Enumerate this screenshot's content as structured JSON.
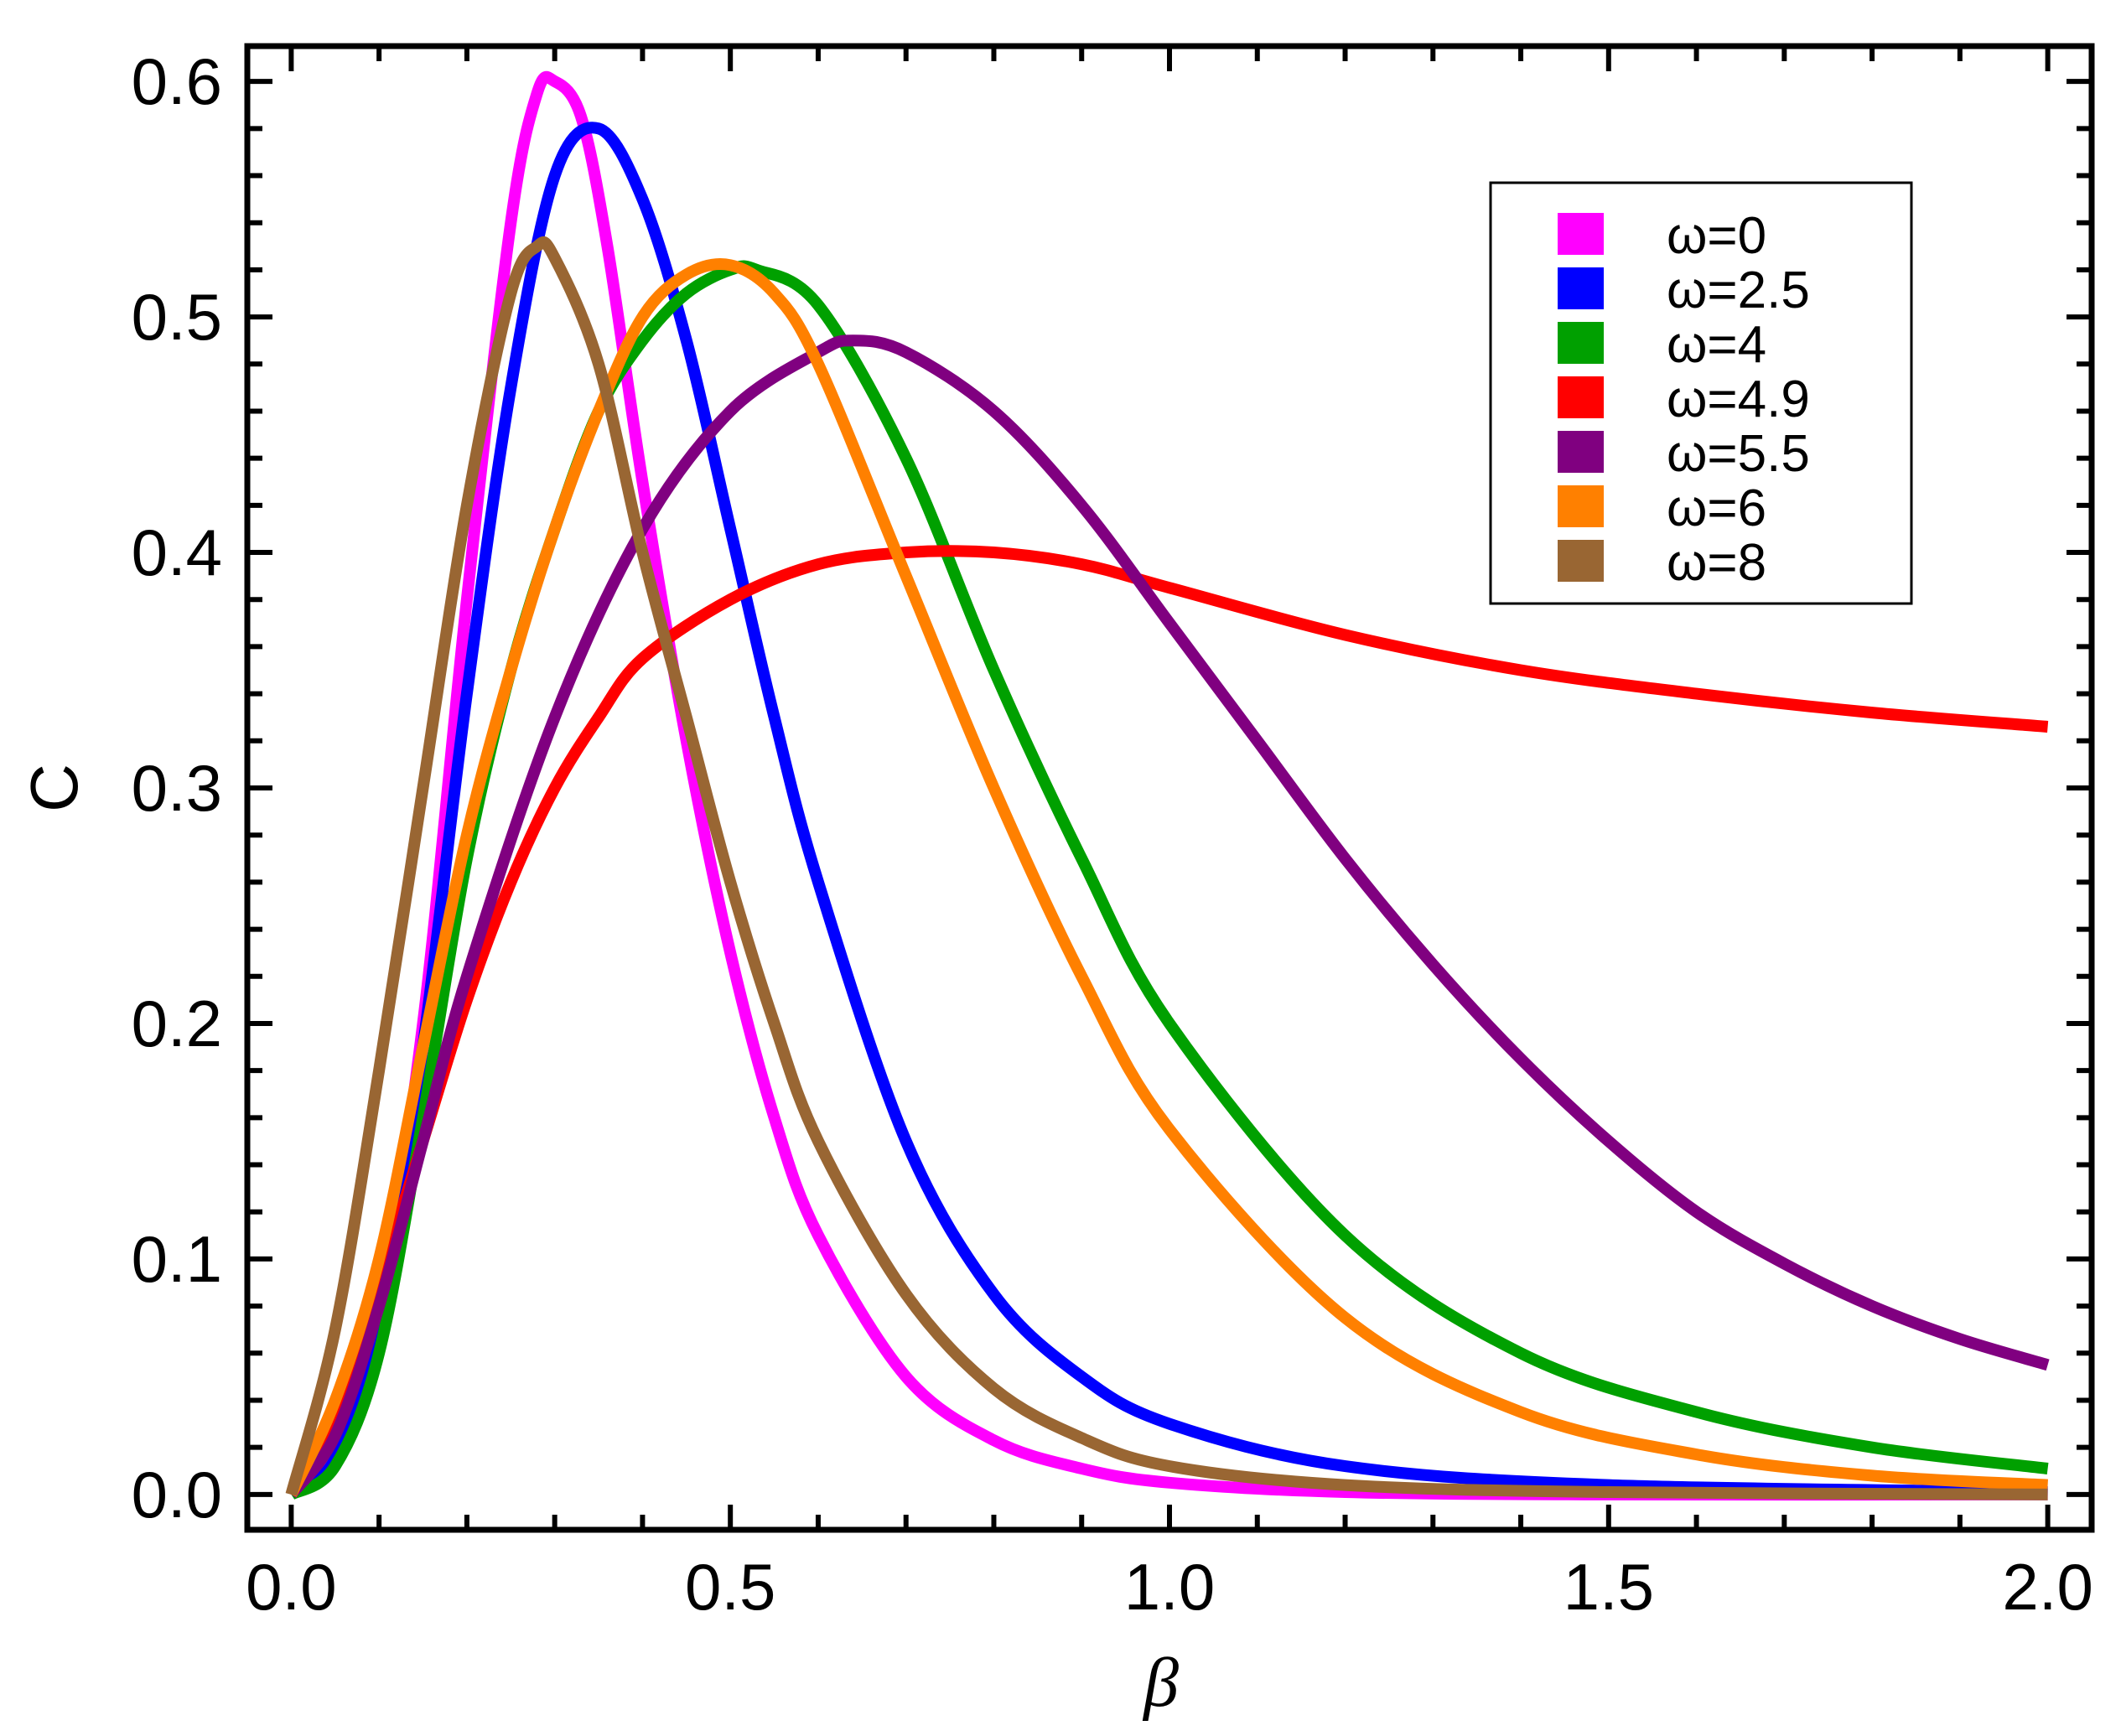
{
  "chart_data": {
    "type": "line",
    "title": "",
    "xlabel": "β",
    "ylabel": "C",
    "xlim": [
      -0.05,
      2.05
    ],
    "ylim": [
      -0.015,
      0.615
    ],
    "x_ticks": [
      "0.0",
      "0.5",
      "1.0",
      "1.5",
      "2.0"
    ],
    "y_ticks": [
      "0.0",
      "0.1",
      "0.2",
      "0.3",
      "0.4",
      "0.5",
      "0.6"
    ],
    "legend_position": "top-right",
    "series": [
      {
        "name": "ω=0",
        "color": "#ff00ff",
        "x": [
          0.0,
          0.05,
          0.1,
          0.15,
          0.2,
          0.25,
          0.28,
          0.3,
          0.33,
          0.36,
          0.4,
          0.45,
          0.5,
          0.55,
          0.6,
          0.7,
          0.8,
          0.9,
          1.0,
          1.2,
          1.5,
          2.0
        ],
        "y": [
          0.0,
          0.02,
          0.08,
          0.2,
          0.38,
          0.54,
          0.595,
          0.6,
          0.585,
          0.53,
          0.43,
          0.32,
          0.23,
          0.16,
          0.11,
          0.05,
          0.023,
          0.011,
          0.005,
          0.001,
          0.0,
          0.0
        ]
      },
      {
        "name": "ω=2.5",
        "color": "#0000ff",
        "x": [
          0.0,
          0.05,
          0.1,
          0.15,
          0.2,
          0.25,
          0.3,
          0.35,
          0.4,
          0.45,
          0.5,
          0.55,
          0.6,
          0.7,
          0.8,
          0.9,
          1.0,
          1.2,
          1.5,
          2.0
        ],
        "y": [
          0.0,
          0.015,
          0.07,
          0.19,
          0.34,
          0.47,
          0.56,
          0.58,
          0.55,
          0.49,
          0.41,
          0.33,
          0.26,
          0.15,
          0.085,
          0.05,
          0.03,
          0.012,
          0.004,
          0.001
        ]
      },
      {
        "name": "ω=4",
        "color": "#00a000",
        "x": [
          0.0,
          0.05,
          0.1,
          0.15,
          0.2,
          0.25,
          0.3,
          0.35,
          0.4,
          0.45,
          0.5,
          0.53,
          0.6,
          0.7,
          0.8,
          0.9,
          1.0,
          1.2,
          1.4,
          1.6,
          1.8,
          2.0
        ],
        "y": [
          0.0,
          0.012,
          0.06,
          0.16,
          0.27,
          0.35,
          0.41,
          0.46,
          0.49,
          0.51,
          0.52,
          0.52,
          0.505,
          0.44,
          0.35,
          0.27,
          0.2,
          0.11,
          0.06,
          0.035,
          0.02,
          0.011
        ]
      },
      {
        "name": "ω=4.9",
        "color": "#ff0000",
        "x": [
          0.0,
          0.05,
          0.1,
          0.15,
          0.2,
          0.25,
          0.3,
          0.35,
          0.4,
          0.5,
          0.6,
          0.7,
          0.8,
          0.9,
          1.0,
          1.2,
          1.4,
          1.6,
          1.8,
          2.0
        ],
        "y": [
          0.0,
          0.03,
          0.09,
          0.15,
          0.21,
          0.26,
          0.3,
          0.33,
          0.355,
          0.38,
          0.395,
          0.4,
          0.4,
          0.395,
          0.385,
          0.365,
          0.35,
          0.34,
          0.332,
          0.326
        ]
      },
      {
        "name": "ω=5.5",
        "color": "#800080",
        "x": [
          0.0,
          0.05,
          0.1,
          0.15,
          0.2,
          0.3,
          0.4,
          0.5,
          0.6,
          0.64,
          0.7,
          0.8,
          0.9,
          1.0,
          1.1,
          1.2,
          1.3,
          1.4,
          1.5,
          1.6,
          1.7,
          1.8,
          1.9,
          2.0
        ],
        "y": [
          0.0,
          0.025,
          0.08,
          0.15,
          0.22,
          0.33,
          0.41,
          0.46,
          0.485,
          0.49,
          0.485,
          0.46,
          0.42,
          0.37,
          0.32,
          0.27,
          0.225,
          0.185,
          0.15,
          0.12,
          0.098,
          0.08,
          0.066,
          0.055
        ]
      },
      {
        "name": "ω=6",
        "color": "#ff8000",
        "x": [
          0.0,
          0.05,
          0.1,
          0.15,
          0.2,
          0.25,
          0.3,
          0.35,
          0.4,
          0.45,
          0.5,
          0.55,
          0.6,
          0.7,
          0.8,
          0.9,
          1.0,
          1.2,
          1.4,
          1.6,
          1.8,
          2.0
        ],
        "y": [
          0.0,
          0.04,
          0.1,
          0.19,
          0.28,
          0.35,
          0.41,
          0.46,
          0.5,
          0.518,
          0.522,
          0.51,
          0.48,
          0.39,
          0.3,
          0.22,
          0.155,
          0.075,
          0.035,
          0.017,
          0.008,
          0.004
        ]
      },
      {
        "name": "ω=8",
        "color": "#996633",
        "x": [
          0.0,
          0.05,
          0.1,
          0.15,
          0.2,
          0.25,
          0.28,
          0.3,
          0.35,
          0.4,
          0.45,
          0.5,
          0.55,
          0.6,
          0.7,
          0.8,
          0.9,
          1.0,
          1.2,
          1.5,
          2.0
        ],
        "y": [
          0.0,
          0.07,
          0.18,
          0.3,
          0.42,
          0.51,
          0.53,
          0.525,
          0.48,
          0.4,
          0.33,
          0.26,
          0.2,
          0.15,
          0.085,
          0.045,
          0.024,
          0.012,
          0.004,
          0.001,
          0.0
        ]
      }
    ]
  }
}
